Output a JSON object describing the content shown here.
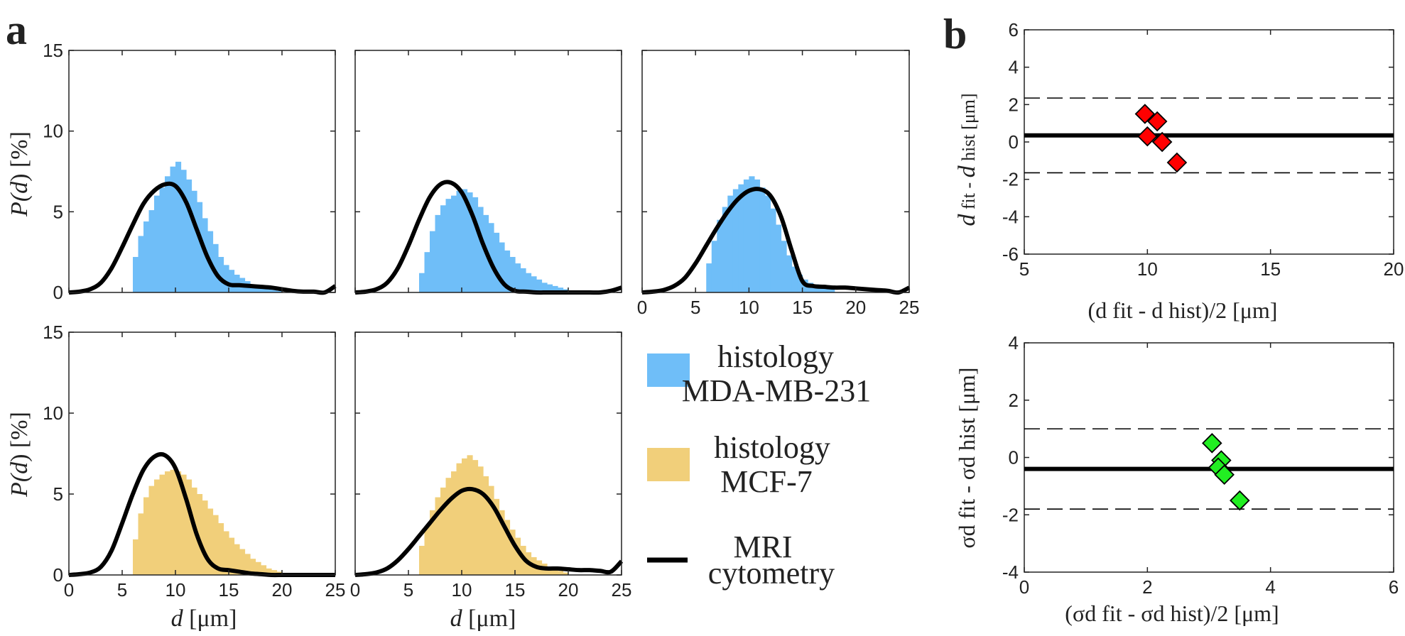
{
  "panel_labels": {
    "a": "a",
    "b": "b"
  },
  "colors": {
    "mda": "#6fbef8",
    "mcf": "#f1cf7a",
    "mri": "#000000",
    "red": "#ff0000",
    "green": "#22ee22"
  },
  "legend": {
    "mda_line1": "histology",
    "mda_line2": "MDA-MB-231",
    "mcf_line1": "histology",
    "mcf_line2": "MCF-7",
    "mri_line1": "MRI",
    "mri_line2": "cytometry"
  },
  "axis_text": {
    "p_label": "P(d) [%]",
    "p_pre": "P(",
    "p_var": "d",
    "p_post": ") [%]",
    "d_var": "d",
    "d_unit": " [μm]",
    "ba_mean_y_a": "d",
    "ba_mean_y_b": " fit - ",
    "ba_mean_y_c": "d",
    "ba_mean_y_d": " hist [μm]",
    "ba_mean_x": "(d fit - d hist)/2 [μm]",
    "ba_sd_y": "σd fit - σd hist [μm]",
    "ba_sd_x": "(σd fit - σd hist)/2 [μm]"
  },
  "chart_data": [
    {
      "id": "hist_mda_1",
      "type": "bar",
      "group": "MDA-MB-231",
      "xlabel": "",
      "ylabel": "P(d) [%]",
      "xlim": [
        0,
        25
      ],
      "ylim": [
        0,
        15
      ],
      "x_ticks": [],
      "y_ticks": [
        0,
        5,
        10,
        15
      ],
      "bin_start": 6,
      "bin_width": 0.5,
      "values": [
        2.2,
        3.5,
        4.4,
        5.1,
        6.0,
        6.5,
        7.2,
        7.8,
        8.1,
        7.6,
        7.0,
        6.3,
        5.6,
        4.6,
        3.8,
        3.0,
        2.2,
        1.7,
        1.4,
        1.1,
        0.9,
        0.7,
        0.5,
        0.4,
        0.3,
        0.2,
        0.15,
        0.1
      ],
      "mri_curve": {
        "x": [
          0,
          1,
          2,
          3,
          4,
          5,
          6,
          7,
          8,
          9,
          10,
          11,
          12,
          13,
          14,
          15,
          16,
          17,
          18,
          19,
          20,
          21,
          22,
          23,
          24,
          25
        ],
        "y": [
          0,
          0.05,
          0.2,
          0.6,
          1.5,
          2.8,
          4.2,
          5.5,
          6.3,
          6.7,
          6.6,
          5.6,
          3.9,
          2.2,
          1.0,
          0.5,
          0.45,
          0.4,
          0.35,
          0.3,
          0.2,
          0.1,
          0.05,
          0.05,
          0,
          0.4
        ]
      }
    },
    {
      "id": "hist_mda_2",
      "type": "bar",
      "group": "MDA-MB-231",
      "xlabel": "",
      "ylabel": "",
      "xlim": [
        0,
        25
      ],
      "ylim": [
        0,
        15
      ],
      "x_ticks": [],
      "y_ticks": [],
      "bin_start": 6,
      "bin_width": 0.5,
      "values": [
        1.2,
        2.5,
        3.8,
        4.8,
        5.4,
        5.8,
        6.0,
        6.3,
        6.4,
        6.2,
        5.9,
        5.3,
        4.8,
        4.3,
        3.7,
        3.1,
        2.6,
        2.2,
        1.8,
        1.5,
        1.2,
        1.0,
        0.8,
        0.6,
        0.5,
        0.4,
        0.3,
        0.2
      ],
      "mri_curve": {
        "x": [
          0,
          1,
          2,
          3,
          4,
          5,
          6,
          7,
          8,
          9,
          10,
          11,
          12,
          13,
          14,
          15,
          16,
          17,
          18,
          19,
          20,
          21,
          22,
          23,
          24,
          25
        ],
        "y": [
          0,
          0.05,
          0.2,
          0.6,
          1.5,
          2.9,
          4.5,
          5.9,
          6.7,
          6.8,
          6.2,
          4.8,
          3.0,
          1.5,
          0.5,
          0.1,
          0.05,
          0,
          0,
          0,
          0,
          0,
          0,
          0,
          0.1,
          0.3
        ]
      }
    },
    {
      "id": "hist_mda_3",
      "type": "bar",
      "group": "MDA-MB-231",
      "xlabel": "",
      "ylabel": "",
      "xlim": [
        0,
        25
      ],
      "ylim": [
        0,
        15
      ],
      "x_ticks": [
        0,
        5,
        10,
        15,
        20,
        25
      ],
      "y_ticks": [],
      "bin_start": 6,
      "bin_width": 0.5,
      "values": [
        1.8,
        3.2,
        4.5,
        5.3,
        6.0,
        6.4,
        6.7,
        7.0,
        7.2,
        7.0,
        6.5,
        6.0,
        5.2,
        4.2,
        3.2,
        2.3,
        1.6,
        1.1,
        0.8,
        0.6,
        0.5,
        0.4,
        0.3,
        0.2
      ],
      "mri_curve": {
        "x": [
          0,
          1,
          2,
          3,
          4,
          5,
          6,
          7,
          8,
          9,
          10,
          11,
          12,
          13,
          14,
          15,
          16,
          17,
          18,
          19,
          20,
          21,
          22,
          23,
          24,
          25
        ],
        "y": [
          0,
          0.05,
          0.15,
          0.4,
          0.9,
          1.8,
          2.9,
          4.0,
          5.0,
          5.8,
          6.3,
          6.4,
          6.0,
          4.7,
          2.6,
          0.7,
          0.4,
          0.35,
          0.3,
          0.3,
          0.25,
          0.2,
          0.15,
          0.1,
          0,
          0.3
        ]
      }
    },
    {
      "id": "hist_mcf_1",
      "type": "bar",
      "group": "MCF-7",
      "xlabel": "d [μm]",
      "ylabel": "P(d) [%]",
      "xlim": [
        0,
        25
      ],
      "ylim": [
        0,
        15
      ],
      "x_ticks": [
        0,
        5,
        10,
        15,
        20,
        25
      ],
      "y_ticks": [
        0,
        5,
        10,
        15
      ],
      "bin_start": 6,
      "bin_width": 0.5,
      "values": [
        2.2,
        3.8,
        4.8,
        5.5,
        5.9,
        6.2,
        6.4,
        6.5,
        6.4,
        6.2,
        5.9,
        5.4,
        5.0,
        4.6,
        4.1,
        3.7,
        3.2,
        2.7,
        2.3,
        1.9,
        1.6,
        1.3,
        1.0,
        0.8,
        0.6,
        0.4,
        0.3,
        0.2
      ],
      "mri_curve": {
        "x": [
          0,
          1,
          2,
          3,
          4,
          5,
          6,
          7,
          8,
          9,
          10,
          11,
          12,
          13,
          14,
          15,
          16,
          17,
          18,
          19,
          20,
          21,
          22,
          23,
          24,
          25
        ],
        "y": [
          0,
          0.05,
          0.15,
          0.5,
          1.5,
          3.2,
          5.0,
          6.5,
          7.3,
          7.4,
          6.6,
          4.7,
          2.5,
          1.0,
          0.4,
          0.3,
          0.2,
          0.1,
          0.05,
          0,
          0,
          0,
          0,
          0,
          0,
          0
        ]
      }
    },
    {
      "id": "hist_mcf_2",
      "type": "bar",
      "group": "MCF-7",
      "xlabel": "d [μm]",
      "ylabel": "",
      "xlim": [
        0,
        25
      ],
      "ylim": [
        0,
        15
      ],
      "x_ticks": [
        0,
        5,
        10,
        15,
        20,
        25
      ],
      "y_ticks": [],
      "bin_start": 6,
      "bin_width": 0.5,
      "values": [
        1.8,
        3.0,
        4.0,
        4.8,
        5.4,
        6.0,
        6.4,
        6.9,
        7.2,
        7.4,
        7.1,
        6.7,
        6.1,
        5.5,
        4.7,
        4.0,
        3.4,
        2.8,
        2.3,
        1.8,
        1.4,
        1.1,
        0.9,
        0.7,
        0.5,
        0.35,
        0.25,
        0.15
      ],
      "mri_curve": {
        "x": [
          0,
          1,
          2,
          3,
          4,
          5,
          6,
          7,
          8,
          9,
          10,
          11,
          12,
          13,
          14,
          15,
          16,
          17,
          18,
          19,
          20,
          21,
          22,
          23,
          24,
          25
        ],
        "y": [
          0,
          0.05,
          0.15,
          0.4,
          0.9,
          1.6,
          2.4,
          3.2,
          4.0,
          4.7,
          5.2,
          5.3,
          5.0,
          4.2,
          3.0,
          1.8,
          0.9,
          0.5,
          0.4,
          0.4,
          0.35,
          0.3,
          0.3,
          0.25,
          0.2,
          0.85
        ]
      }
    },
    {
      "id": "bland_altman_mean",
      "type": "scatter",
      "xlabel": "(d fit - d hist)/2 [μm]",
      "ylabel": "d fit - d hist [μm]",
      "xlim": [
        5,
        20
      ],
      "ylim": [
        -6,
        6
      ],
      "x_ticks": [
        5,
        10,
        15,
        20
      ],
      "y_ticks": [
        -6,
        -4,
        -2,
        0,
        2,
        4,
        6
      ],
      "points": [
        [
          9.9,
          1.5
        ],
        [
          10.4,
          1.1
        ],
        [
          10.0,
          0.3
        ],
        [
          10.6,
          0.0
        ],
        [
          11.2,
          -1.1
        ]
      ],
      "mean_line": 0.35,
      "upper_limit": 2.35,
      "lower_limit": -1.65,
      "marker_color": "#ff0000"
    },
    {
      "id": "bland_altman_sd",
      "type": "scatter",
      "xlabel": "(σd fit - σd hist)/2 [μm]",
      "ylabel": "σd fit - σd hist [μm]",
      "xlim": [
        0,
        6
      ],
      "ylim": [
        -4,
        4
      ],
      "x_ticks": [
        0,
        2,
        4,
        6
      ],
      "y_ticks": [
        -4,
        -2,
        0,
        2,
        4
      ],
      "points": [
        [
          3.05,
          0.5
        ],
        [
          3.2,
          -0.1
        ],
        [
          3.15,
          -0.35
        ],
        [
          3.25,
          -0.6
        ],
        [
          3.5,
          -1.5
        ]
      ],
      "mean_line": -0.4,
      "upper_limit": 1.0,
      "lower_limit": -1.8,
      "marker_color": "#22ee22"
    }
  ]
}
